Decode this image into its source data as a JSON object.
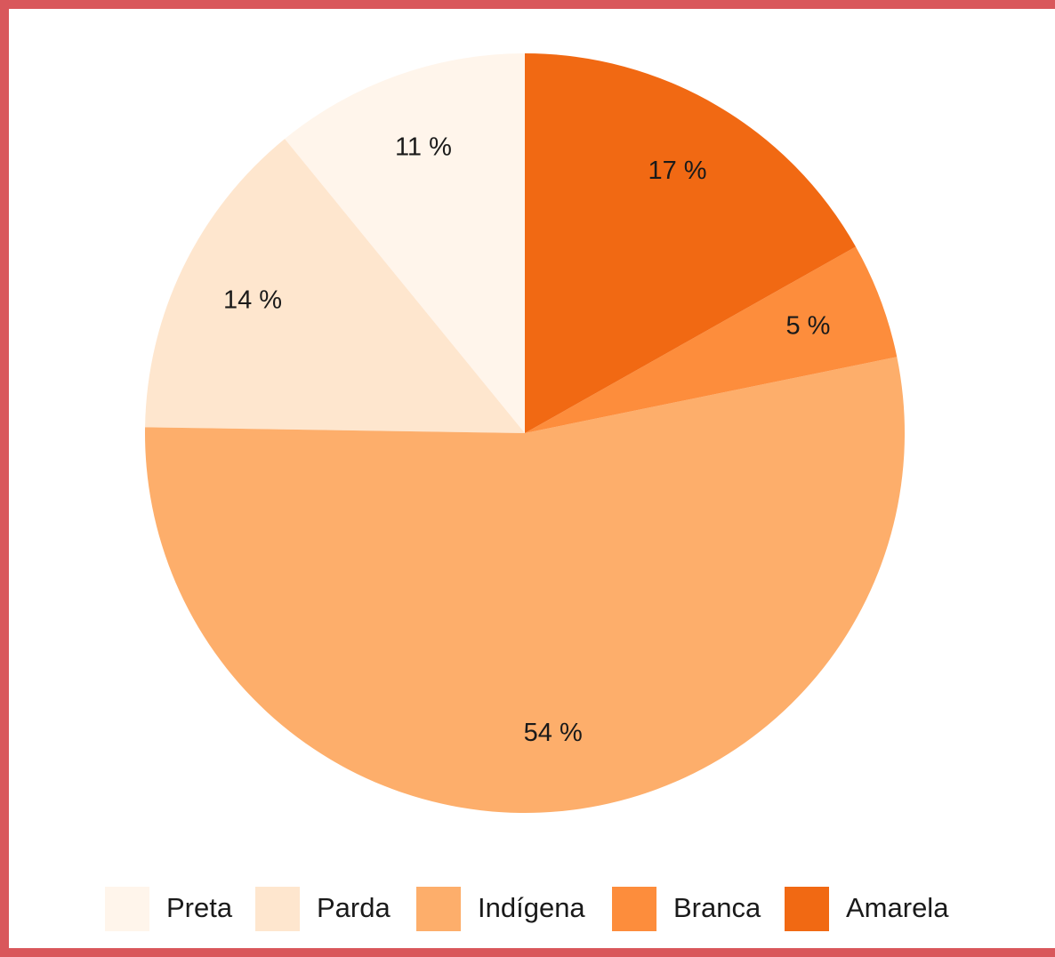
{
  "chart_data": {
    "type": "pie",
    "categories": [
      "Preta",
      "Parda",
      "Indígena",
      "Branca",
      "Amarela"
    ],
    "values": [
      11,
      14,
      54,
      5,
      17
    ],
    "value_labels": [
      "11 %",
      "14 %",
      "54 %",
      "5 %",
      "17 %"
    ],
    "colors": [
      "#fff5eb",
      "#fee6ce",
      "#fdae6b",
      "#fd8d3c",
      "#f16913"
    ],
    "legend": "bottom"
  }
}
